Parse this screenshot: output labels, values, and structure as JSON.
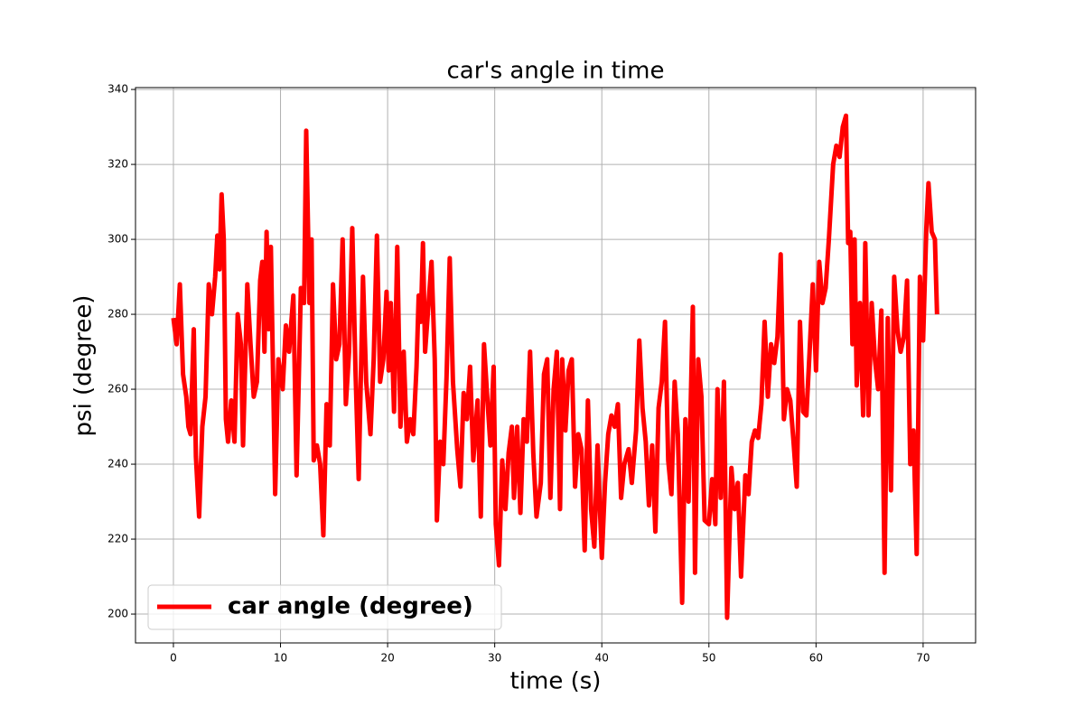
{
  "chart_data": {
    "type": "line",
    "title": "car's angle in time",
    "xlabel": "time (s)",
    "ylabel": "psi (degree)",
    "x": [
      0,
      0.3,
      0.6,
      0.9,
      1.2,
      1.4,
      1.6,
      1.9,
      2.1,
      2.4,
      2.7,
      3.0,
      3.3,
      3.6,
      3.9,
      4.1,
      4.3,
      4.5,
      4.7,
      4.9,
      5.1,
      5.4,
      5.7,
      6.0,
      6.3,
      6.5,
      6.9,
      7.2,
      7.5,
      7.8,
      8.1,
      8.3,
      8.5,
      8.7,
      8.9,
      9.1,
      9.5,
      9.8,
      10.2,
      10.5,
      10.8,
      11.2,
      11.5,
      11.9,
      12.2,
      12.4,
      12.7,
      12.9,
      13.1,
      13.4,
      13.7,
      14.0,
      14.3,
      14.6,
      14.9,
      15.2,
      15.5,
      15.8,
      16.1,
      16.4,
      16.7,
      17.0,
      17.3,
      17.7,
      18.0,
      18.4,
      18.7,
      19.0,
      19.3,
      19.6,
      19.9,
      20.1,
      20.3,
      20.6,
      20.9,
      21.2,
      21.5,
      21.8,
      22.1,
      22.4,
      22.7,
      22.9,
      23.1,
      23.3,
      23.5,
      23.8,
      24.1,
      24.4,
      24.6,
      24.9,
      25.2,
      25.5,
      25.8,
      26.1,
      26.5,
      26.8,
      27.1,
      27.4,
      27.7,
      28.0,
      28.4,
      28.7,
      29.0,
      29.3,
      29.6,
      29.9,
      30.1,
      30.4,
      30.7,
      31.0,
      31.3,
      31.6,
      31.8,
      32.1,
      32.4,
      32.7,
      33.0,
      33.3,
      33.6,
      33.9,
      34.3,
      34.6,
      34.9,
      35.2,
      35.5,
      35.8,
      36.1,
      36.3,
      36.6,
      36.9,
      37.2,
      37.5,
      37.8,
      38.1,
      38.4,
      38.7,
      39.0,
      39.3,
      39.6,
      40.0,
      40.3,
      40.6,
      40.9,
      41.2,
      41.5,
      41.8,
      42.1,
      42.5,
      42.8,
      43.2,
      43.5,
      43.8,
      44.1,
      44.4,
      44.7,
      45.0,
      45.3,
      45.6,
      45.9,
      46.2,
      46.5,
      46.8,
      47.1,
      47.5,
      47.8,
      48.1,
      48.5,
      48.7,
      49.0,
      49.3,
      49.6,
      50.0,
      50.3,
      50.6,
      50.8,
      51.1,
      51.4,
      51.7,
      52.1,
      52.4,
      52.7,
      53.0,
      53.4,
      53.7,
      54.0,
      54.3,
      54.6,
      54.9,
      55.2,
      55.5,
      55.8,
      56.1,
      56.4,
      56.7,
      57.0,
      57.3,
      57.6,
      57.9,
      58.2,
      58.5,
      58.8,
      59.1,
      59.4,
      59.7,
      60.0,
      60.3,
      60.6,
      60.9,
      61.2,
      61.6,
      61.9,
      62.2,
      62.5,
      62.8,
      63.0,
      63.2,
      63.4,
      63.6,
      63.8,
      64.1,
      64.4,
      64.6,
      64.9,
      65.2,
      65.5,
      65.8,
      66.1,
      66.4,
      66.7,
      67.0,
      67.3,
      67.6,
      67.9,
      68.2,
      68.5,
      68.8,
      69.1,
      69.4,
      69.7,
      70.0,
      70.3,
      70.5,
      70.8,
      71.1,
      71.3
    ],
    "series": [
      {
        "name": "car angle (degree)",
        "color": "#ff0000",
        "values": [
          279,
          272,
          288,
          264,
          258,
          250,
          248,
          276,
          242,
          226,
          250,
          258,
          288,
          280,
          290,
          301,
          292,
          312,
          300,
          252,
          246,
          257,
          246,
          280,
          272,
          245,
          288,
          272,
          258,
          262,
          289,
          294,
          270,
          302,
          276,
          298,
          232,
          268,
          260,
          277,
          270,
          285,
          237,
          287,
          283,
          329,
          283,
          300,
          241,
          245,
          240,
          221,
          256,
          245,
          288,
          268,
          272,
          300,
          256,
          270,
          303,
          265,
          236,
          290,
          262,
          248,
          268,
          301,
          262,
          268,
          286,
          265,
          283,
          254,
          298,
          250,
          270,
          246,
          252,
          248,
          266,
          285,
          278,
          299,
          270,
          282,
          294,
          268,
          225,
          246,
          240,
          263,
          295,
          262,
          244,
          234,
          259,
          252,
          266,
          241,
          257,
          226,
          272,
          258,
          245,
          266,
          224,
          213,
          241,
          228,
          243,
          250,
          231,
          250,
          227,
          252,
          246,
          270,
          243,
          226,
          235,
          264,
          268,
          231,
          260,
          270,
          228,
          268,
          249,
          265,
          268,
          234,
          248,
          244,
          217,
          257,
          228,
          218,
          245,
          215,
          235,
          248,
          253,
          250,
          256,
          231,
          240,
          244,
          235,
          249,
          273,
          255,
          246,
          229,
          245,
          222,
          255,
          262,
          278,
          241,
          232,
          262,
          248,
          203,
          252,
          230,
          282,
          211,
          268,
          258,
          225,
          224,
          236,
          224,
          260,
          231,
          262,
          199,
          239,
          228,
          235,
          210,
          237,
          232,
          246,
          249,
          247,
          256,
          278,
          258,
          272,
          267,
          274,
          296,
          252,
          260,
          257,
          246,
          234,
          278,
          254,
          253,
          270,
          288,
          265,
          294,
          283,
          287,
          300,
          320,
          325,
          322,
          330,
          333,
          299,
          302,
          272,
          300,
          261,
          283,
          253,
          299,
          253,
          283,
          268,
          260,
          281,
          211,
          279,
          233,
          290,
          276,
          270,
          274,
          289,
          240,
          249,
          216,
          290,
          273,
          303,
          315,
          302,
          300,
          280
        ]
      }
    ],
    "xlim": [
      -3.54,
      74.9
    ],
    "ylim": [
      192.3,
      340.5
    ],
    "xticks": [
      0,
      10,
      20,
      30,
      40,
      50,
      60,
      70
    ],
    "yticks": [
      200,
      220,
      240,
      260,
      280,
      300,
      320,
      340
    ],
    "grid": true,
    "legend": "lower left"
  }
}
